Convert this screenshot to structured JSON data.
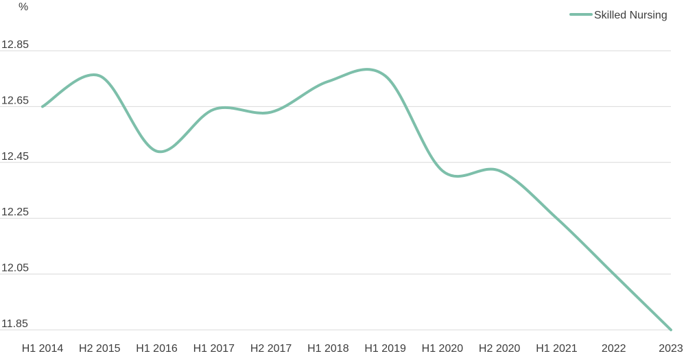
{
  "chart_data": {
    "type": "line",
    "title": "",
    "ylabel": "%",
    "xlabel": "",
    "categories": [
      "H1 2014",
      "H2 2015",
      "H1 2016",
      "H1 2017",
      "H2 2017",
      "H1 2018",
      "H1 2019",
      "H1 2020",
      "H2 2020",
      "H1 2021",
      "2022",
      "2023"
    ],
    "yticks": [
      "12.85",
      "12.65",
      "12.45",
      "12.25",
      "12.05",
      "11.85"
    ],
    "ylim": [
      11.85,
      12.85
    ],
    "grid": true,
    "legend_position": "top-right",
    "series": [
      {
        "name": "Skilled Nursing",
        "color": "#7dbfaa",
        "values": [
          12.65,
          12.76,
          12.49,
          12.64,
          12.63,
          12.74,
          12.76,
          12.42,
          12.42,
          12.25,
          12.05,
          11.85
        ]
      }
    ]
  }
}
